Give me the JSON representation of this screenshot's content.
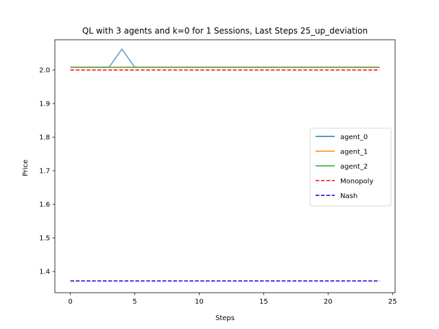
{
  "chart_data": {
    "type": "line",
    "title": "QL with 3 agents and k=0 for 1 Sessions, Last Steps 25_up_deviation",
    "xlabel": "Steps",
    "ylabel": "Price",
    "xlim": [
      -1.2,
      25.2
    ],
    "ylim": [
      1.337,
      2.09
    ],
    "xticks": [
      0,
      5,
      10,
      15,
      20,
      25
    ],
    "yticks": [
      1.4,
      1.5,
      1.6,
      1.7,
      1.8,
      1.9,
      2.0
    ],
    "yticks_labels": [
      "1.4",
      "1.5",
      "1.6",
      "1.7",
      "1.8",
      "1.9",
      "2.0"
    ],
    "legend_position": "center-right",
    "grid": false,
    "x": [
      0,
      1,
      2,
      3,
      4,
      5,
      6,
      7,
      8,
      9,
      10,
      11,
      12,
      13,
      14,
      15,
      16,
      17,
      18,
      19,
      20,
      21,
      22,
      23,
      24
    ],
    "series": [
      {
        "name": "agent_0",
        "color": "#1f77b4",
        "style": "solid",
        "values": [
          2.008,
          2.008,
          2.008,
          2.008,
          2.062,
          2.008,
          2.008,
          2.008,
          2.008,
          2.008,
          2.008,
          2.008,
          2.008,
          2.008,
          2.008,
          2.008,
          2.008,
          2.008,
          2.008,
          2.008,
          2.008,
          2.008,
          2.008,
          2.008,
          2.008
        ]
      },
      {
        "name": "agent_1",
        "color": "#ff7f0e",
        "style": "solid",
        "values": [
          2.008,
          2.008,
          2.008,
          2.008,
          2.008,
          2.008,
          2.008,
          2.008,
          2.008,
          2.008,
          2.008,
          2.008,
          2.008,
          2.008,
          2.008,
          2.008,
          2.008,
          2.008,
          2.008,
          2.008,
          2.008,
          2.008,
          2.008,
          2.008,
          2.008
        ]
      },
      {
        "name": "agent_2",
        "color": "#2ca02c",
        "style": "solid",
        "values": [
          2.008,
          2.008,
          2.008,
          2.008,
          2.008,
          2.008,
          2.008,
          2.008,
          2.008,
          2.008,
          2.008,
          2.008,
          2.008,
          2.008,
          2.008,
          2.008,
          2.008,
          2.008,
          2.008,
          2.008,
          2.008,
          2.008,
          2.008,
          2.008,
          2.008
        ]
      },
      {
        "name": "Monopoly",
        "color": "#ff0000",
        "style": "dashed",
        "values": [
          2.0,
          2.0,
          2.0,
          2.0,
          2.0,
          2.0,
          2.0,
          2.0,
          2.0,
          2.0,
          2.0,
          2.0,
          2.0,
          2.0,
          2.0,
          2.0,
          2.0,
          2.0,
          2.0,
          2.0,
          2.0,
          2.0,
          2.0,
          2.0,
          2.0
        ]
      },
      {
        "name": "Nash",
        "color": "#0000cc",
        "style": "dashed",
        "values": [
          1.372,
          1.372,
          1.372,
          1.372,
          1.372,
          1.372,
          1.372,
          1.372,
          1.372,
          1.372,
          1.372,
          1.372,
          1.372,
          1.372,
          1.372,
          1.372,
          1.372,
          1.372,
          1.372,
          1.372,
          1.372,
          1.372,
          1.372,
          1.372,
          1.372
        ]
      }
    ]
  }
}
